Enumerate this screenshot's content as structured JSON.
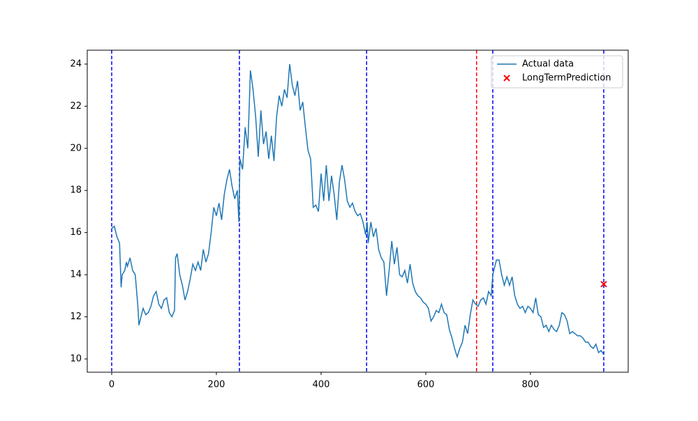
{
  "chart_data": {
    "type": "line",
    "xlim": [
      -46.7,
      986.7
    ],
    "ylim": [
      9.37,
      24.66
    ],
    "xticks": [
      0,
      200,
      400,
      600,
      800
    ],
    "yticks": [
      10,
      12,
      14,
      16,
      18,
      20,
      22,
      24
    ],
    "legend": "upper right",
    "vlines": [
      {
        "x": 0,
        "color": "blue"
      },
      {
        "x": 244,
        "color": "blue"
      },
      {
        "x": 487,
        "color": "blue"
      },
      {
        "x": 697,
        "color": "red"
      },
      {
        "x": 728,
        "color": "blue"
      },
      {
        "x": 940,
        "color": "blue"
      }
    ],
    "series": [
      {
        "name": "Actual data",
        "color": "#1f77b4",
        "kind": "line",
        "x": [
          0,
          5,
          10,
          15,
          18,
          20,
          25,
          28,
          30,
          35,
          40,
          45,
          50,
          52,
          55,
          60,
          65,
          70,
          75,
          80,
          85,
          90,
          95,
          100,
          105,
          110,
          115,
          120,
          122,
          125,
          130,
          135,
          140,
          145,
          150,
          155,
          160,
          165,
          170,
          175,
          180,
          185,
          190,
          195,
          200,
          205,
          210,
          215,
          220,
          225,
          230,
          235,
          240,
          243,
          245,
          250,
          255,
          260,
          265,
          270,
          275,
          280,
          285,
          290,
          295,
          300,
          305,
          310,
          315,
          320,
          325,
          330,
          335,
          340,
          345,
          350,
          355,
          360,
          365,
          370,
          375,
          380,
          385,
          390,
          395,
          400,
          405,
          410,
          415,
          420,
          425,
          430,
          435,
          440,
          445,
          450,
          455,
          460,
          465,
          470,
          475,
          480,
          485,
          488,
          490,
          495,
          500,
          505,
          510,
          515,
          520,
          525,
          530,
          535,
          540,
          545,
          550,
          555,
          560,
          565,
          570,
          575,
          580,
          585,
          590,
          595,
          600,
          605,
          610,
          615,
          620,
          625,
          630,
          635,
          640,
          645,
          650,
          655,
          660,
          665,
          670,
          675,
          680,
          685,
          690,
          695,
          700,
          705,
          710,
          715,
          720,
          725,
          728,
          730,
          735,
          740,
          745,
          750,
          755,
          760,
          765,
          770,
          775,
          780,
          785,
          790,
          795,
          800,
          805,
          810,
          815,
          820,
          825,
          830,
          835,
          840,
          845,
          850,
          855,
          860,
          865,
          870,
          875,
          880,
          885,
          890,
          895,
          900,
          905,
          910,
          915,
          920,
          925,
          930,
          935,
          940
        ],
        "values": [
          16.2,
          16.3,
          15.8,
          15.5,
          13.4,
          14.0,
          14.2,
          14.6,
          14.4,
          14.8,
          14.2,
          14.0,
          12.5,
          11.6,
          11.9,
          12.4,
          12.1,
          12.2,
          12.5,
          13.0,
          13.2,
          12.6,
          12.4,
          12.8,
          12.9,
          12.2,
          12.0,
          12.3,
          14.8,
          15.0,
          14.0,
          13.5,
          12.8,
          13.2,
          13.8,
          14.5,
          14.2,
          14.6,
          14.2,
          15.2,
          14.6,
          15.0,
          16.0,
          17.2,
          16.8,
          17.4,
          16.6,
          17.8,
          18.5,
          19.0,
          18.2,
          17.6,
          18.0,
          16.5,
          19.5,
          19.0,
          21.0,
          20.0,
          23.7,
          22.8,
          21.5,
          19.6,
          21.8,
          20.2,
          20.8,
          19.5,
          20.6,
          19.4,
          21.5,
          22.5,
          22.0,
          22.8,
          22.4,
          24.0,
          23.0,
          22.5,
          23.2,
          21.8,
          22.2,
          21.0,
          19.9,
          19.5,
          17.2,
          17.3,
          17.0,
          18.8,
          17.5,
          19.2,
          17.5,
          18.7,
          17.8,
          16.6,
          18.4,
          19.2,
          18.5,
          17.5,
          17.2,
          17.4,
          17.0,
          16.8,
          16.9,
          16.5,
          15.9,
          16.5,
          15.5,
          16.5,
          15.8,
          16.2,
          15.2,
          14.8,
          14.6,
          13.0,
          14.2,
          15.6,
          14.5,
          15.3,
          14.0,
          13.9,
          14.2,
          13.6,
          14.5,
          13.6,
          13.2,
          13.0,
          12.9,
          12.7,
          12.6,
          12.4,
          11.8,
          12.0,
          12.3,
          12.2,
          12.6,
          12.2,
          12.1,
          11.4,
          11.0,
          10.5,
          10.1,
          10.5,
          10.8,
          11.6,
          11.2,
          12.1,
          12.8,
          12.6,
          12.5,
          12.8,
          12.9,
          12.6,
          13.2,
          13.0,
          14.0,
          14.2,
          14.7,
          14.7,
          14.0,
          13.5,
          13.9,
          13.5,
          13.9,
          13.0,
          12.6,
          12.4,
          12.5,
          12.2,
          12.5,
          12.4,
          12.2,
          12.9,
          12.1,
          12.0,
          11.5,
          11.6,
          11.3,
          11.6,
          11.4,
          11.3,
          11.6,
          12.2,
          12.1,
          11.8,
          11.2,
          11.3,
          11.2,
          11.1,
          11.1,
          11.0,
          10.8,
          10.8,
          10.6,
          10.5,
          10.7,
          10.3,
          10.4,
          10.2
        ]
      },
      {
        "name": "LongTermPrediction",
        "color": "red",
        "kind": "scatter",
        "x": [
          940
        ],
        "values": [
          13.55
        ]
      }
    ]
  }
}
